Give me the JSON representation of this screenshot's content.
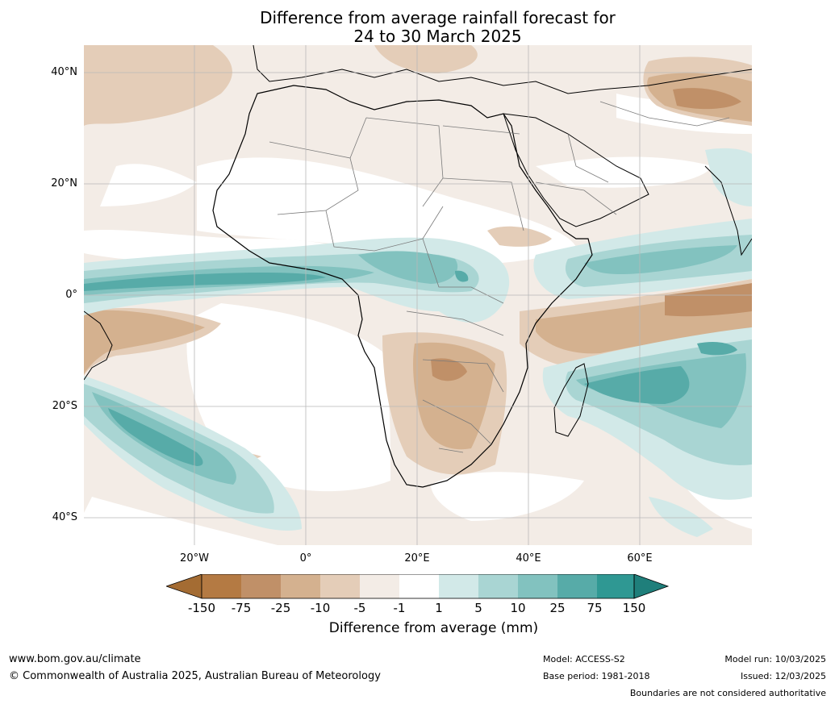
{
  "title": {
    "line1": "Difference from average rainfall forecast for",
    "line2": "24 to 30 March 2025"
  },
  "map": {
    "lat_ticks": [
      "40°N",
      "20°N",
      "0°",
      "20°S",
      "40°S"
    ],
    "lon_ticks": [
      "20°W",
      "0°",
      "20°E",
      "40°E",
      "60°E"
    ],
    "colors": {
      "minus150": "#a46c33",
      "minus75": "#b47a43",
      "minus25": "#c09068",
      "minus10": "#d4b18f",
      "minus5": "#e4cdb8",
      "minus1": "#f3ece6",
      "near_zero": "#ffffff",
      "plus1": "#d2e9e8",
      "plus5": "#a9d5d3",
      "plus10": "#82c2bf",
      "plus25": "#57aba8",
      "plus75": "#2f9893",
      "plus150": "#1f7f7b"
    }
  },
  "colorbar": {
    "labels": [
      "-150",
      "-75",
      "-25",
      "-10",
      "-5",
      "-1",
      "1",
      "5",
      "10",
      "25",
      "75",
      "150"
    ],
    "title": "Difference from average (mm)"
  },
  "footer": {
    "website": "www.bom.gov.au/climate",
    "copyright": "© Commonwealth of Australia 2025, Australian Bureau of Meteorology",
    "model": "Model: ACCESS-S2",
    "base_period": "Base period: 1981-2018",
    "model_run": "Model run: 10/03/2025",
    "issued": "Issued: 12/03/2025",
    "disclaimer": "Boundaries are not considered authoritative"
  }
}
